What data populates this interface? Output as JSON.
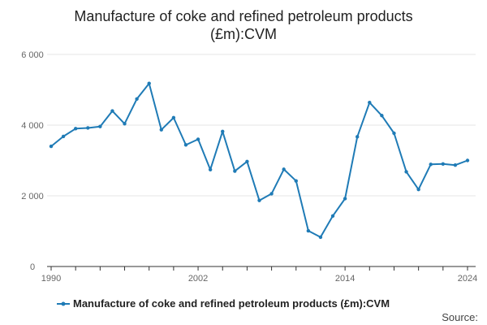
{
  "colors": {
    "series": "#1f7bb6",
    "grid": "#e6e6e6",
    "axis": "#333333",
    "text": "#222222"
  },
  "chart_data": {
    "type": "line",
    "title_lines": [
      "Manufacture of coke and refined petroleum products",
      "(£m):CVM"
    ],
    "xlabel": "",
    "ylabel": "",
    "xlim": [
      1990,
      2024
    ],
    "ylim": [
      0,
      6000
    ],
    "y_ticks": [
      0,
      2000,
      4000,
      6000
    ],
    "y_tick_labels": [
      "0",
      "2 000",
      "4 000",
      "6 000"
    ],
    "x_ticks": [
      1990,
      1992,
      1994,
      1996,
      1998,
      2000,
      2002,
      2004,
      2006,
      2008,
      2010,
      2012,
      2014,
      2016,
      2018,
      2020,
      2022,
      2024
    ],
    "x_tick_labels": [
      {
        "x": 1990,
        "label": "1990"
      },
      {
        "x": 2002,
        "label": "2002"
      },
      {
        "x": 2014,
        "label": "2014"
      },
      {
        "x": 2024,
        "label": "2024"
      }
    ],
    "grid": true,
    "legend_position": "bottom",
    "series": [
      {
        "name": "Manufacture of coke and refined petroleum products (£m):CVM",
        "x": [
          1990,
          1991,
          1992,
          1993,
          1994,
          1995,
          1996,
          1997,
          1998,
          1999,
          2000,
          2001,
          2002,
          2003,
          2004,
          2005,
          2006,
          2007,
          2008,
          2009,
          2010,
          2011,
          2012,
          2013,
          2014,
          2015,
          2016,
          2017,
          2018,
          2019,
          2020,
          2021,
          2022,
          2023,
          2024
        ],
        "values": [
          3400,
          3680,
          3900,
          3920,
          3960,
          4400,
          4040,
          4740,
          5180,
          3870,
          4210,
          3440,
          3600,
          2740,
          3820,
          2700,
          2970,
          1870,
          2060,
          2750,
          2420,
          1010,
          830,
          1430,
          1920,
          3670,
          4640,
          4270,
          3770,
          2680,
          2180,
          2890,
          2900,
          2870,
          3000
        ]
      }
    ]
  },
  "source_label": "Source:"
}
